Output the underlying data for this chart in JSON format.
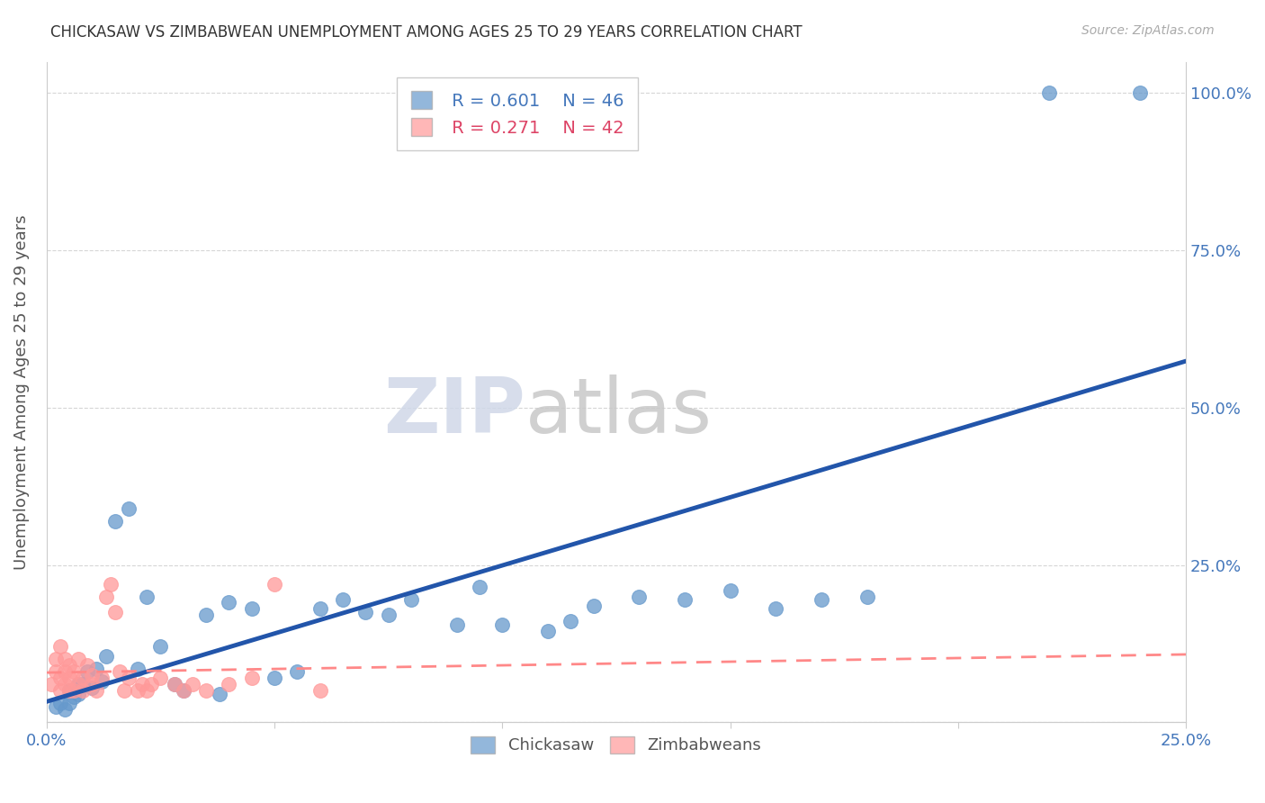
{
  "title": "CHICKASAW VS ZIMBABWEAN UNEMPLOYMENT AMONG AGES 25 TO 29 YEARS CORRELATION CHART",
  "source": "Source: ZipAtlas.com",
  "ylabel": "Unemployment Among Ages 25 to 29 years",
  "xlim": [
    0.0,
    0.25
  ],
  "ylim": [
    0.0,
    1.05
  ],
  "legend_blue_r": "R = 0.601",
  "legend_blue_n": "N = 46",
  "legend_pink_r": "R = 0.271",
  "legend_pink_n": "N = 42",
  "blue_color": "#6699cc",
  "pink_color": "#ff9999",
  "blue_line_color": "#2255aa",
  "pink_line_color": "#ff8888",
  "tick_color_blue": "#4477bb",
  "tick_color_pink": "#dd4466",
  "watermark_zip": "ZIP",
  "watermark_atlas": "atlas",
  "chickasaw_x": [
    0.002,
    0.003,
    0.004,
    0.005,
    0.005,
    0.006,
    0.007,
    0.007,
    0.008,
    0.009,
    0.01,
    0.011,
    0.012,
    0.013,
    0.015,
    0.018,
    0.02,
    0.022,
    0.025,
    0.028,
    0.03,
    0.035,
    0.038,
    0.04,
    0.045,
    0.05,
    0.055,
    0.06,
    0.065,
    0.07,
    0.075,
    0.08,
    0.09,
    0.095,
    0.1,
    0.11,
    0.115,
    0.12,
    0.13,
    0.14,
    0.15,
    0.16,
    0.17,
    0.18,
    0.22,
    0.24
  ],
  "chickasaw_y": [
    0.025,
    0.03,
    0.02,
    0.03,
    0.05,
    0.04,
    0.06,
    0.045,
    0.06,
    0.08,
    0.055,
    0.085,
    0.065,
    0.105,
    0.32,
    0.34,
    0.085,
    0.2,
    0.12,
    0.06,
    0.05,
    0.17,
    0.045,
    0.19,
    0.18,
    0.07,
    0.08,
    0.18,
    0.195,
    0.175,
    0.17,
    0.195,
    0.155,
    0.215,
    0.155,
    0.145,
    0.16,
    0.185,
    0.2,
    0.195,
    0.21,
    0.18,
    0.195,
    0.2,
    1.0,
    1.0
  ],
  "zimbabwean_x": [
    0.001,
    0.002,
    0.002,
    0.003,
    0.003,
    0.003,
    0.004,
    0.004,
    0.004,
    0.005,
    0.005,
    0.005,
    0.006,
    0.006,
    0.007,
    0.007,
    0.008,
    0.008,
    0.009,
    0.01,
    0.01,
    0.011,
    0.012,
    0.013,
    0.014,
    0.015,
    0.016,
    0.017,
    0.018,
    0.02,
    0.021,
    0.022,
    0.023,
    0.025,
    0.028,
    0.03,
    0.032,
    0.035,
    0.04,
    0.045,
    0.05,
    0.06
  ],
  "zimbabwean_y": [
    0.06,
    0.08,
    0.1,
    0.05,
    0.07,
    0.12,
    0.06,
    0.08,
    0.1,
    0.05,
    0.07,
    0.09,
    0.05,
    0.08,
    0.06,
    0.1,
    0.05,
    0.07,
    0.09,
    0.06,
    0.075,
    0.05,
    0.07,
    0.2,
    0.22,
    0.175,
    0.08,
    0.05,
    0.07,
    0.05,
    0.06,
    0.05,
    0.06,
    0.07,
    0.06,
    0.05,
    0.06,
    0.05,
    0.06,
    0.07,
    0.22,
    0.05
  ]
}
